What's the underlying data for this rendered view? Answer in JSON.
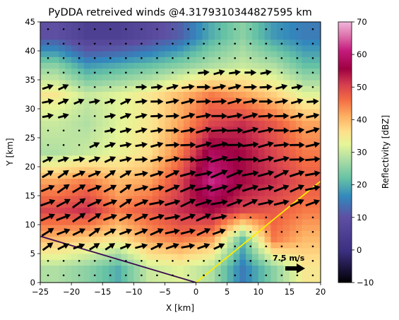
{
  "chart_data": {
    "type": "heatmap",
    "title": "PyDDA retreived winds @4.3179310344827595 km",
    "xlabel": "X [km]",
    "ylabel": "Y [km]",
    "xlim": [
      -25,
      20
    ],
    "ylim": [
      0,
      45
    ],
    "x_ticks": [
      -25,
      -20,
      -15,
      -10,
      -5,
      0,
      5,
      10,
      15,
      20
    ],
    "x_tick_labels": [
      "−25",
      "−20",
      "−15",
      "−10",
      "−5",
      "0",
      "5",
      "10",
      "15",
      "20"
    ],
    "y_ticks": [
      0,
      5,
      10,
      15,
      20,
      25,
      30,
      35,
      40,
      45
    ],
    "y_tick_labels": [
      "0",
      "5",
      "10",
      "15",
      "20",
      "25",
      "30",
      "35",
      "40",
      "45"
    ],
    "colorbar": {
      "label": "Reflectivity [dBZ]",
      "range": [
        -10,
        70
      ],
      "ticks": [
        -10,
        0,
        10,
        20,
        30,
        40,
        50,
        60,
        70
      ],
      "tick_labels": [
        "−10",
        "0",
        "10",
        "20",
        "30",
        "40",
        "50",
        "60",
        "70"
      ],
      "colormap": "Spectral_r"
    },
    "reflectivity_grid_dBZ": {
      "x_centers_km": [
        -22.5,
        -17.5,
        -12.5,
        -7.5,
        -2.5,
        2.5,
        7.5,
        12.5,
        17.5
      ],
      "y_centers_km": [
        42.5,
        37.5,
        32.5,
        27.5,
        22.5,
        17.5,
        12.5,
        7.5,
        2.5
      ],
      "rows": [
        [
          10,
          5,
          5,
          8,
          12,
          20,
          25,
          18,
          15
        ],
        [
          25,
          18,
          20,
          22,
          25,
          28,
          30,
          28,
          22
        ],
        [
          35,
          30,
          32,
          35,
          40,
          45,
          42,
          38,
          32
        ],
        [
          30,
          28,
          32,
          35,
          42,
          50,
          52,
          48,
          42
        ],
        [
          28,
          30,
          33,
          36,
          45,
          58,
          55,
          50,
          45
        ],
        [
          42,
          45,
          40,
          42,
          50,
          62,
          55,
          52,
          48
        ],
        [
          50,
          52,
          45,
          48,
          52,
          55,
          50,
          48,
          45
        ],
        [
          40,
          38,
          35,
          42,
          45,
          42,
          22,
          45,
          40
        ],
        [
          28,
          25,
          20,
          30,
          32,
          28,
          15,
          25,
          35
        ]
      ]
    },
    "wind_quiver": {
      "reference_label": "7.5 m/s",
      "reference_speed_ms": 7.5,
      "dominant_direction": "toward east / north-east"
    },
    "overlay_lines": [
      {
        "color": "#ffeb00",
        "from": [
          0,
          0
        ],
        "to": [
          20,
          17.5
        ]
      },
      {
        "color": "#3a0a52",
        "from": [
          -25,
          8
        ],
        "to": [
          0,
          0
        ]
      }
    ]
  }
}
